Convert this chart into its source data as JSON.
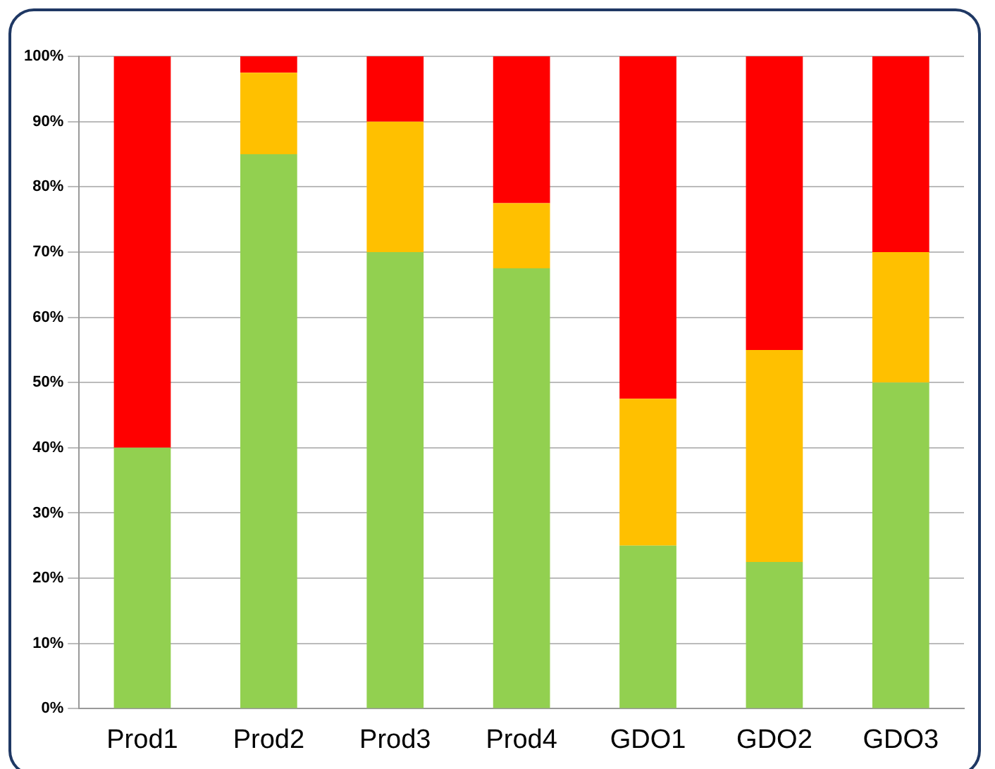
{
  "chart_data": {
    "type": "bar",
    "stacked": true,
    "categories": [
      "Prod1",
      "Prod2",
      "Prod3",
      "Prod4",
      "GDO1",
      "GDO2",
      "GDO3"
    ],
    "series": [
      {
        "color": "#92d050",
        "values": [
          40,
          85,
          70,
          67.5,
          25,
          22.5,
          50
        ]
      },
      {
        "color": "#ffc000",
        "values": [
          0,
          12.5,
          20,
          10,
          22.5,
          32.5,
          20
        ]
      },
      {
        "color": "#ff0000",
        "values": [
          60,
          2.5,
          10,
          22.5,
          52.5,
          45,
          30
        ]
      }
    ],
    "ylim": [
      0,
      100
    ],
    "yticks": [
      {
        "value": 0,
        "label": "0%"
      },
      {
        "value": 10,
        "label": "10%"
      },
      {
        "value": 20,
        "label": "20%"
      },
      {
        "value": 30,
        "label": "30%"
      },
      {
        "value": 40,
        "label": "40%"
      },
      {
        "value": 50,
        "label": "50%"
      },
      {
        "value": 60,
        "label": "60%"
      },
      {
        "value": 70,
        "label": "70%"
      },
      {
        "value": 80,
        "label": "80%"
      },
      {
        "value": 90,
        "label": "90%"
      },
      {
        "value": 100,
        "label": "100%"
      }
    ],
    "grid": "y",
    "legend": false
  }
}
